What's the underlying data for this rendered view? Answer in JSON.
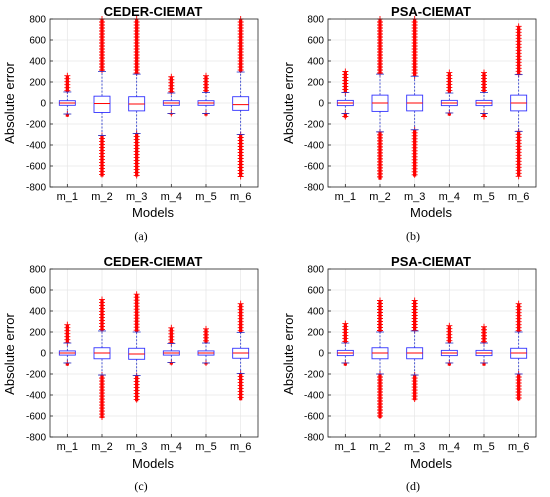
{
  "chart_data": [
    {
      "type": "box",
      "panel_label": "(a)",
      "title": "CEDER-CIEMAT",
      "xlabel": "Models",
      "ylabel": "Absolute error",
      "categories": [
        "m_1",
        "m_2",
        "m_3",
        "m_4",
        "m_5",
        "m_6"
      ],
      "ylim": [
        -800,
        800
      ],
      "yticks": [
        -800,
        -600,
        -400,
        -200,
        0,
        200,
        400,
        600,
        800
      ],
      "grid": true,
      "boxes": [
        {
          "q1": -22,
          "median": 0,
          "q3": 22,
          "whisker_low": -105,
          "whisker_high": 105,
          "outlier_low": -130,
          "outlier_high": 260
        },
        {
          "q1": -90,
          "median": -5,
          "q3": 65,
          "whisker_low": -310,
          "whisker_high": 300,
          "outlier_low": -700,
          "outlier_high": 800
        },
        {
          "q1": -75,
          "median": -10,
          "q3": 60,
          "whisker_low": -290,
          "whisker_high": 275,
          "outlier_low": -700,
          "outlier_high": 800
        },
        {
          "q1": -22,
          "median": 0,
          "q3": 22,
          "whisker_low": -100,
          "whisker_high": 95,
          "outlier_low": -110,
          "outlier_high": 250
        },
        {
          "q1": -22,
          "median": 0,
          "q3": 22,
          "whisker_low": -100,
          "whisker_high": 100,
          "outlier_low": -120,
          "outlier_high": 260
        },
        {
          "q1": -70,
          "median": -15,
          "q3": 60,
          "whisker_low": -300,
          "whisker_high": 295,
          "outlier_low": -700,
          "outlier_high": 800
        }
      ]
    },
    {
      "type": "box",
      "panel_label": "(b)",
      "title": "PSA-CIEMAT",
      "xlabel": "Models",
      "ylabel": "Absolute error",
      "categories": [
        "m_1",
        "m_2",
        "m_3",
        "m_4",
        "m_5",
        "m_6"
      ],
      "ylim": [
        -800,
        800
      ],
      "yticks": [
        -800,
        -600,
        -400,
        -200,
        0,
        200,
        400,
        600,
        800
      ],
      "grid": true,
      "boxes": [
        {
          "q1": -25,
          "median": 0,
          "q3": 25,
          "whisker_low": -100,
          "whisker_high": 100,
          "outlier_low": -140,
          "outlier_high": 300
        },
        {
          "q1": -80,
          "median": 0,
          "q3": 75,
          "whisker_low": -275,
          "whisker_high": 275,
          "outlier_low": -730,
          "outlier_high": 800
        },
        {
          "q1": -75,
          "median": 0,
          "q3": 75,
          "whisker_low": -255,
          "whisker_high": 255,
          "outlier_low": -700,
          "outlier_high": 800
        },
        {
          "q1": -25,
          "median": 0,
          "q3": 25,
          "whisker_low": -95,
          "whisker_high": 95,
          "outlier_low": -120,
          "outlier_high": 290
        },
        {
          "q1": -25,
          "median": 0,
          "q3": 25,
          "whisker_low": -100,
          "whisker_high": 100,
          "outlier_low": -130,
          "outlier_high": 290
        },
        {
          "q1": -75,
          "median": 0,
          "q3": 75,
          "whisker_low": -270,
          "whisker_high": 270,
          "outlier_low": -700,
          "outlier_high": 730
        }
      ]
    },
    {
      "type": "box",
      "panel_label": "(c)",
      "title": "CEDER-CIEMAT",
      "xlabel": "Models",
      "ylabel": "Absolute error",
      "categories": [
        "m_1",
        "m_2",
        "m_3",
        "m_4",
        "m_5",
        "m_6"
      ],
      "ylim": [
        -800,
        800
      ],
      "yticks": [
        -800,
        -600,
        -400,
        -200,
        0,
        200,
        400,
        600,
        800
      ],
      "grid": true,
      "boxes": [
        {
          "q1": -20,
          "median": 0,
          "q3": 20,
          "whisker_low": -95,
          "whisker_high": 95,
          "outlier_low": -120,
          "outlier_high": 270
        },
        {
          "q1": -55,
          "median": 0,
          "q3": 50,
          "whisker_low": -210,
          "whisker_high": 210,
          "outlier_low": -620,
          "outlier_high": 510
        },
        {
          "q1": -60,
          "median": -10,
          "q3": 45,
          "whisker_low": -215,
          "whisker_high": 200,
          "outlier_low": -460,
          "outlier_high": 560
        },
        {
          "q1": -20,
          "median": 0,
          "q3": 20,
          "whisker_low": -90,
          "whisker_high": 90,
          "outlier_low": -110,
          "outlier_high": 240
        },
        {
          "q1": -20,
          "median": 0,
          "q3": 20,
          "whisker_low": -95,
          "whisker_high": 95,
          "outlier_low": -110,
          "outlier_high": 230
        },
        {
          "q1": -50,
          "median": 0,
          "q3": 45,
          "whisker_low": -195,
          "whisker_high": 195,
          "outlier_low": -450,
          "outlier_high": 470
        }
      ]
    },
    {
      "type": "box",
      "panel_label": "(d)",
      "title": "PSA-CIEMAT",
      "xlabel": "Models",
      "ylabel": "Absolute error",
      "categories": [
        "m_1",
        "m_2",
        "m_3",
        "m_4",
        "m_5",
        "m_6"
      ],
      "ylim": [
        -800,
        800
      ],
      "yticks": [
        -800,
        -600,
        -400,
        -200,
        0,
        200,
        400,
        600,
        800
      ],
      "grid": true,
      "boxes": [
        {
          "q1": -25,
          "median": 0,
          "q3": 25,
          "whisker_low": -95,
          "whisker_high": 95,
          "outlier_low": -120,
          "outlier_high": 280
        },
        {
          "q1": -55,
          "median": 0,
          "q3": 50,
          "whisker_low": -200,
          "whisker_high": 200,
          "outlier_low": -620,
          "outlier_high": 500
        },
        {
          "q1": -55,
          "median": 0,
          "q3": 50,
          "whisker_low": -210,
          "whisker_high": 210,
          "outlier_low": -450,
          "outlier_high": 500
        },
        {
          "q1": -25,
          "median": 0,
          "q3": 25,
          "whisker_low": -95,
          "whisker_high": 95,
          "outlier_low": -120,
          "outlier_high": 260
        },
        {
          "q1": -25,
          "median": 0,
          "q3": 25,
          "whisker_low": -95,
          "whisker_high": 95,
          "outlier_low": -120,
          "outlier_high": 250
        },
        {
          "q1": -50,
          "median": 0,
          "q3": 45,
          "whisker_low": -200,
          "whisker_high": 200,
          "outlier_low": -450,
          "outlier_high": 470
        }
      ]
    }
  ],
  "colors": {
    "box": "#3333ff",
    "median": "#ff0000",
    "whisker": "#2233cc",
    "outlier": "#ff0000",
    "grid": "#e6e6e6",
    "axis": "#262626",
    "text": "#000000"
  }
}
